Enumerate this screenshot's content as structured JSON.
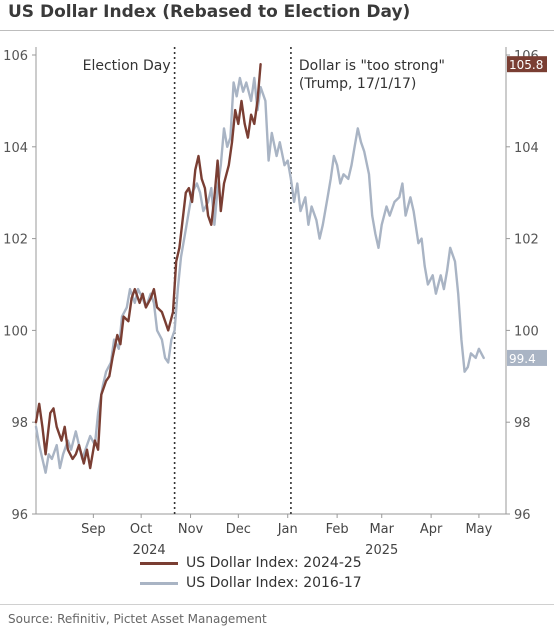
{
  "title": "US Dollar Index (Rebased to Election Day)",
  "source": "Source: Refinitiv, Pictet Asset Management",
  "chart_data": {
    "type": "line",
    "title": "US Dollar Index (Rebased to Election Day)",
    "xlabel": "",
    "ylabel": "",
    "ylim": [
      96,
      106
    ],
    "xlim": [
      "2024-08-10",
      "2025-06-01"
    ],
    "yticks": [
      96,
      98,
      100,
      102,
      104,
      106
    ],
    "ytick_labels": [
      "96",
      "98",
      "100",
      "102",
      "104",
      "106"
    ],
    "xticks": [
      {
        "date": "2024-09-15",
        "label": "Sep"
      },
      {
        "date": "2024-10-15",
        "label": "Oct"
      },
      {
        "date": "2024-11-15",
        "label": "Nov"
      },
      {
        "date": "2024-12-15",
        "label": "Dec"
      },
      {
        "date": "2025-01-15",
        "label": "Jan"
      },
      {
        "date": "2025-02-15",
        "label": "Feb"
      },
      {
        "date": "2025-03-15",
        "label": "Mar"
      },
      {
        "date": "2025-04-15",
        "label": "Apr"
      },
      {
        "date": "2025-05-15",
        "label": "May"
      }
    ],
    "year_labels": [
      {
        "date": "2024-10-20",
        "label": "2024"
      },
      {
        "date": "2025-03-15",
        "label": "2025"
      }
    ],
    "grid": false,
    "legend_position": "bottom",
    "annotations": [
      {
        "date": "2024-11-05",
        "text": "Election Day"
      },
      {
        "date": "2025-01-17",
        "text": "Dollar is \"too strong\"",
        "text2": "(Trump, 17/1/17)"
      }
    ],
    "end_labels": [
      {
        "series": "US Dollar Index: 2024-25",
        "value": 105.8,
        "text": "105.8"
      },
      {
        "series": "US Dollar Index: 2016-17",
        "value": 99.4,
        "text": "99.4"
      }
    ],
    "series": [
      {
        "name": "US Dollar Index: 2024-25",
        "color": "#7a3e33",
        "points": [
          [
            "2024-08-10",
            98.0
          ],
          [
            "2024-08-12",
            98.4
          ],
          [
            "2024-08-14",
            97.9
          ],
          [
            "2024-08-16",
            97.3
          ],
          [
            "2024-08-19",
            98.2
          ],
          [
            "2024-08-21",
            98.3
          ],
          [
            "2024-08-23",
            97.9
          ],
          [
            "2024-08-26",
            97.6
          ],
          [
            "2024-08-28",
            97.9
          ],
          [
            "2024-08-30",
            97.4
          ],
          [
            "2024-09-02",
            97.2
          ],
          [
            "2024-09-04",
            97.3
          ],
          [
            "2024-09-06",
            97.5
          ],
          [
            "2024-09-09",
            97.1
          ],
          [
            "2024-09-11",
            97.4
          ],
          [
            "2024-09-13",
            97.0
          ],
          [
            "2024-09-16",
            97.6
          ],
          [
            "2024-09-18",
            97.4
          ],
          [
            "2024-09-20",
            98.6
          ],
          [
            "2024-09-23",
            98.9
          ],
          [
            "2024-09-25",
            99.0
          ],
          [
            "2024-09-27",
            99.4
          ],
          [
            "2024-09-30",
            99.9
          ],
          [
            "2024-10-02",
            99.7
          ],
          [
            "2024-10-04",
            100.3
          ],
          [
            "2024-10-07",
            100.2
          ],
          [
            "2024-10-09",
            100.7
          ],
          [
            "2024-10-11",
            100.9
          ],
          [
            "2024-10-14",
            100.6
          ],
          [
            "2024-10-16",
            100.8
          ],
          [
            "2024-10-18",
            100.5
          ],
          [
            "2024-10-21",
            100.7
          ],
          [
            "2024-10-23",
            100.9
          ],
          [
            "2024-10-25",
            100.5
          ],
          [
            "2024-10-28",
            100.4
          ],
          [
            "2024-10-30",
            100.2
          ],
          [
            "2024-11-01",
            100.0
          ],
          [
            "2024-11-04",
            100.4
          ],
          [
            "2024-11-06",
            101.5
          ],
          [
            "2024-11-08",
            101.8
          ],
          [
            "2024-11-10",
            102.4
          ],
          [
            "2024-11-12",
            103.0
          ],
          [
            "2024-11-14",
            103.1
          ],
          [
            "2024-11-16",
            102.8
          ],
          [
            "2024-11-18",
            103.5
          ],
          [
            "2024-11-20",
            103.8
          ],
          [
            "2024-11-22",
            103.3
          ],
          [
            "2024-11-24",
            103.1
          ],
          [
            "2024-11-26",
            102.5
          ],
          [
            "2024-11-28",
            102.3
          ],
          [
            "2024-11-30",
            102.9
          ],
          [
            "2024-12-02",
            103.7
          ],
          [
            "2024-12-04",
            102.6
          ],
          [
            "2024-12-06",
            103.2
          ],
          [
            "2024-12-09",
            103.6
          ],
          [
            "2024-12-11",
            104.1
          ],
          [
            "2024-12-13",
            104.8
          ],
          [
            "2024-12-15",
            104.5
          ],
          [
            "2024-12-17",
            105.0
          ],
          [
            "2024-12-19",
            104.5
          ],
          [
            "2024-12-21",
            104.2
          ],
          [
            "2024-12-23",
            104.7
          ],
          [
            "2024-12-25",
            104.5
          ],
          [
            "2024-12-27",
            105.0
          ],
          [
            "2024-12-29",
            105.8
          ]
        ]
      },
      {
        "name": "US Dollar Index: 2016-17",
        "color": "#a9b4c4",
        "points": [
          [
            "2024-08-10",
            97.9
          ],
          [
            "2024-08-12",
            97.5
          ],
          [
            "2024-08-14",
            97.2
          ],
          [
            "2024-08-16",
            96.9
          ],
          [
            "2024-08-18",
            97.3
          ],
          [
            "2024-08-20",
            97.2
          ],
          [
            "2024-08-23",
            97.5
          ],
          [
            "2024-08-25",
            97.0
          ],
          [
            "2024-08-27",
            97.3
          ],
          [
            "2024-08-30",
            97.6
          ],
          [
            "2024-09-01",
            97.4
          ],
          [
            "2024-09-04",
            97.8
          ],
          [
            "2024-09-06",
            97.5
          ],
          [
            "2024-09-08",
            97.2
          ],
          [
            "2024-09-11",
            97.5
          ],
          [
            "2024-09-13",
            97.7
          ],
          [
            "2024-09-16",
            97.5
          ],
          [
            "2024-09-18",
            98.2
          ],
          [
            "2024-09-21",
            98.8
          ],
          [
            "2024-09-23",
            99.1
          ],
          [
            "2024-09-26",
            99.3
          ],
          [
            "2024-09-28",
            99.8
          ],
          [
            "2024-10-01",
            99.6
          ],
          [
            "2024-10-03",
            100.3
          ],
          [
            "2024-10-06",
            100.5
          ],
          [
            "2024-10-08",
            100.9
          ],
          [
            "2024-10-11",
            100.6
          ],
          [
            "2024-10-13",
            100.9
          ],
          [
            "2024-10-16",
            100.7
          ],
          [
            "2024-10-18",
            100.5
          ],
          [
            "2024-10-21",
            100.8
          ],
          [
            "2024-10-23",
            100.6
          ],
          [
            "2024-10-25",
            100.0
          ],
          [
            "2024-10-28",
            99.8
          ],
          [
            "2024-10-30",
            99.4
          ],
          [
            "2024-11-01",
            99.3
          ],
          [
            "2024-11-03",
            99.8
          ],
          [
            "2024-11-05",
            100.0
          ],
          [
            "2024-11-07",
            100.9
          ],
          [
            "2024-11-09",
            101.6
          ],
          [
            "2024-11-12",
            102.2
          ],
          [
            "2024-11-14",
            102.6
          ],
          [
            "2024-11-16",
            103.0
          ],
          [
            "2024-11-19",
            103.2
          ],
          [
            "2024-11-21",
            103.0
          ],
          [
            "2024-11-23",
            102.6
          ],
          [
            "2024-11-26",
            102.8
          ],
          [
            "2024-11-28",
            103.1
          ],
          [
            "2024-11-30",
            102.3
          ],
          [
            "2024-12-02",
            103.1
          ],
          [
            "2024-12-04",
            103.6
          ],
          [
            "2024-12-06",
            104.4
          ],
          [
            "2024-12-08",
            104.0
          ],
          [
            "2024-12-10",
            104.2
          ],
          [
            "2024-12-12",
            105.4
          ],
          [
            "2024-12-14",
            105.1
          ],
          [
            "2024-12-16",
            105.5
          ],
          [
            "2024-12-18",
            105.2
          ],
          [
            "2024-12-20",
            105.4
          ],
          [
            "2024-12-23",
            105.0
          ],
          [
            "2024-12-25",
            105.5
          ],
          [
            "2024-12-27",
            104.8
          ],
          [
            "2024-12-29",
            105.3
          ],
          [
            "2025-01-01",
            105.0
          ],
          [
            "2025-01-03",
            103.7
          ],
          [
            "2025-01-05",
            104.3
          ],
          [
            "2025-01-08",
            103.8
          ],
          [
            "2025-01-10",
            104.1
          ],
          [
            "2025-01-13",
            103.6
          ],
          [
            "2025-01-15",
            103.7
          ],
          [
            "2025-01-17",
            103.3
          ],
          [
            "2025-01-19",
            102.8
          ],
          [
            "2025-01-21",
            103.2
          ],
          [
            "2025-01-23",
            102.6
          ],
          [
            "2025-01-26",
            102.9
          ],
          [
            "2025-01-28",
            102.3
          ],
          [
            "2025-01-30",
            102.7
          ],
          [
            "2025-02-02",
            102.4
          ],
          [
            "2025-02-04",
            102.0
          ],
          [
            "2025-02-06",
            102.3
          ],
          [
            "2025-02-09",
            102.9
          ],
          [
            "2025-02-11",
            103.3
          ],
          [
            "2025-02-13",
            103.8
          ],
          [
            "2025-02-15",
            103.6
          ],
          [
            "2025-02-17",
            103.2
          ],
          [
            "2025-02-19",
            103.4
          ],
          [
            "2025-02-22",
            103.3
          ],
          [
            "2025-02-24",
            103.6
          ],
          [
            "2025-02-26",
            104.0
          ],
          [
            "2025-02-28",
            104.4
          ],
          [
            "2025-03-02",
            104.1
          ],
          [
            "2025-03-04",
            103.9
          ],
          [
            "2025-03-07",
            103.4
          ],
          [
            "2025-03-09",
            102.5
          ],
          [
            "2025-03-11",
            102.1
          ],
          [
            "2025-03-13",
            101.8
          ],
          [
            "2025-03-15",
            102.3
          ],
          [
            "2025-03-18",
            102.7
          ],
          [
            "2025-03-20",
            102.5
          ],
          [
            "2025-03-23",
            102.8
          ],
          [
            "2025-03-26",
            102.9
          ],
          [
            "2025-03-28",
            103.2
          ],
          [
            "2025-03-30",
            102.5
          ],
          [
            "2025-04-02",
            102.9
          ],
          [
            "2025-04-04",
            102.6
          ],
          [
            "2025-04-07",
            101.9
          ],
          [
            "2025-04-09",
            102.0
          ],
          [
            "2025-04-11",
            101.4
          ],
          [
            "2025-04-13",
            101.0
          ],
          [
            "2025-04-16",
            101.2
          ],
          [
            "2025-04-18",
            100.8
          ],
          [
            "2025-04-21",
            101.2
          ],
          [
            "2025-04-23",
            100.9
          ],
          [
            "2025-04-25",
            101.3
          ],
          [
            "2025-04-27",
            101.8
          ],
          [
            "2025-04-30",
            101.5
          ],
          [
            "2025-05-02",
            100.8
          ],
          [
            "2025-05-04",
            99.8
          ],
          [
            "2025-05-06",
            99.1
          ],
          [
            "2025-05-08",
            99.2
          ],
          [
            "2025-05-10",
            99.5
          ],
          [
            "2025-05-13",
            99.4
          ],
          [
            "2025-05-15",
            99.6
          ],
          [
            "2025-05-18",
            99.4
          ]
        ]
      }
    ]
  }
}
